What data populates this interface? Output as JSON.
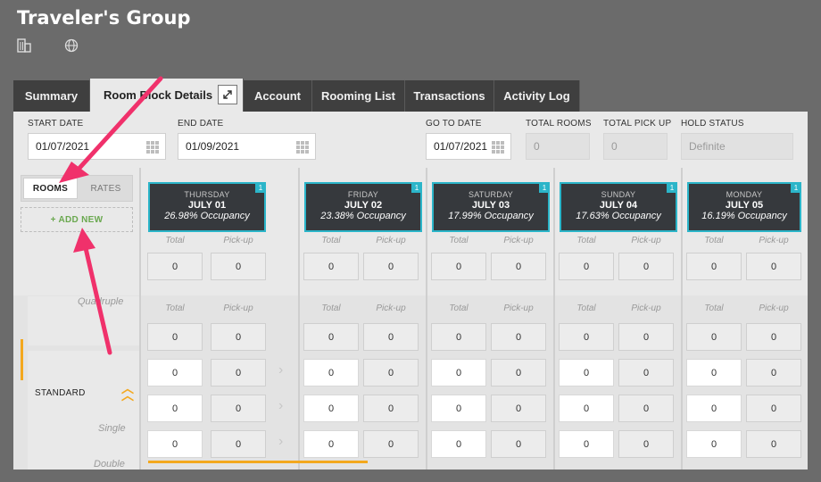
{
  "header": {
    "title": "Traveler's Group",
    "icons": [
      "building-icon",
      "globe-icon"
    ]
  },
  "tabs": [
    {
      "label": "Summary",
      "active": false
    },
    {
      "label": "Room Block Details",
      "active": true
    },
    {
      "label": "Account",
      "active": false
    },
    {
      "label": "Rooming List",
      "active": false
    },
    {
      "label": "Transactions",
      "active": false
    },
    {
      "label": "Activity Log",
      "active": false
    }
  ],
  "filters": {
    "start_date": {
      "label": "START DATE",
      "value": "01/07/2021"
    },
    "end_date": {
      "label": "END DATE",
      "value": "01/09/2021"
    },
    "go_to_date": {
      "label": "GO TO DATE",
      "value": "01/07/2021"
    },
    "total_rooms": {
      "label": "TOTAL ROOMS",
      "value": "0"
    },
    "total_pickup": {
      "label": "TOTAL PICK UP",
      "value": "0"
    },
    "hold_status": {
      "label": "HOLD STATUS",
      "value": "Definite"
    }
  },
  "left": {
    "rooms_label": "ROOMS",
    "rates_label": "RATES",
    "add_new_label": "+ ADD NEW",
    "quad_label": "Quadruple",
    "standard_label": "STANDARD",
    "single_label": "Single",
    "double_label": "Double"
  },
  "columns": {
    "total_label": "Total",
    "pickup_label": "Pick-up"
  },
  "days": [
    {
      "dow": "THURSDAY",
      "date": "JULY 01",
      "occupancy": "26.98% Occupancy",
      "badge": "1",
      "rows": [
        [
          "0",
          "0"
        ],
        [
          "0",
          "0"
        ],
        [
          "0",
          "0"
        ],
        [
          "0",
          "0"
        ],
        [
          "0",
          "0"
        ]
      ]
    },
    {
      "dow": "FRIDAY",
      "date": "JULY 02",
      "occupancy": "23.38% Occupancy",
      "badge": "1",
      "rows": [
        [
          "0",
          "0"
        ],
        [
          "0",
          "0"
        ],
        [
          "0",
          "0"
        ],
        [
          "0",
          "0"
        ],
        [
          "0",
          "0"
        ]
      ]
    },
    {
      "dow": "SATURDAY",
      "date": "JULY 03",
      "occupancy": "17.99% Occupancy",
      "badge": "1",
      "rows": [
        [
          "0",
          "0"
        ],
        [
          "0",
          "0"
        ],
        [
          "0",
          "0"
        ],
        [
          "0",
          "0"
        ],
        [
          "0",
          "0"
        ]
      ]
    },
    {
      "dow": "SUNDAY",
      "date": "JULY 04",
      "occupancy": "17.63% Occupancy",
      "badge": "1",
      "rows": [
        [
          "0",
          "0"
        ],
        [
          "0",
          "0"
        ],
        [
          "0",
          "0"
        ],
        [
          "0",
          "0"
        ],
        [
          "0",
          "0"
        ]
      ]
    },
    {
      "dow": "MONDAY",
      "date": "JULY 05",
      "occupancy": "16.19% Occupancy",
      "badge": "1",
      "rows": [
        [
          "0",
          "0"
        ],
        [
          "0",
          "0"
        ],
        [
          "0",
          "0"
        ],
        [
          "0",
          "0"
        ],
        [
          "0",
          "0"
        ]
      ]
    }
  ],
  "colors": {
    "accent": "#2bb5c9",
    "annotation": "#f0316b",
    "highlight": "#f3a81e",
    "add_new": "#6aa84f"
  }
}
